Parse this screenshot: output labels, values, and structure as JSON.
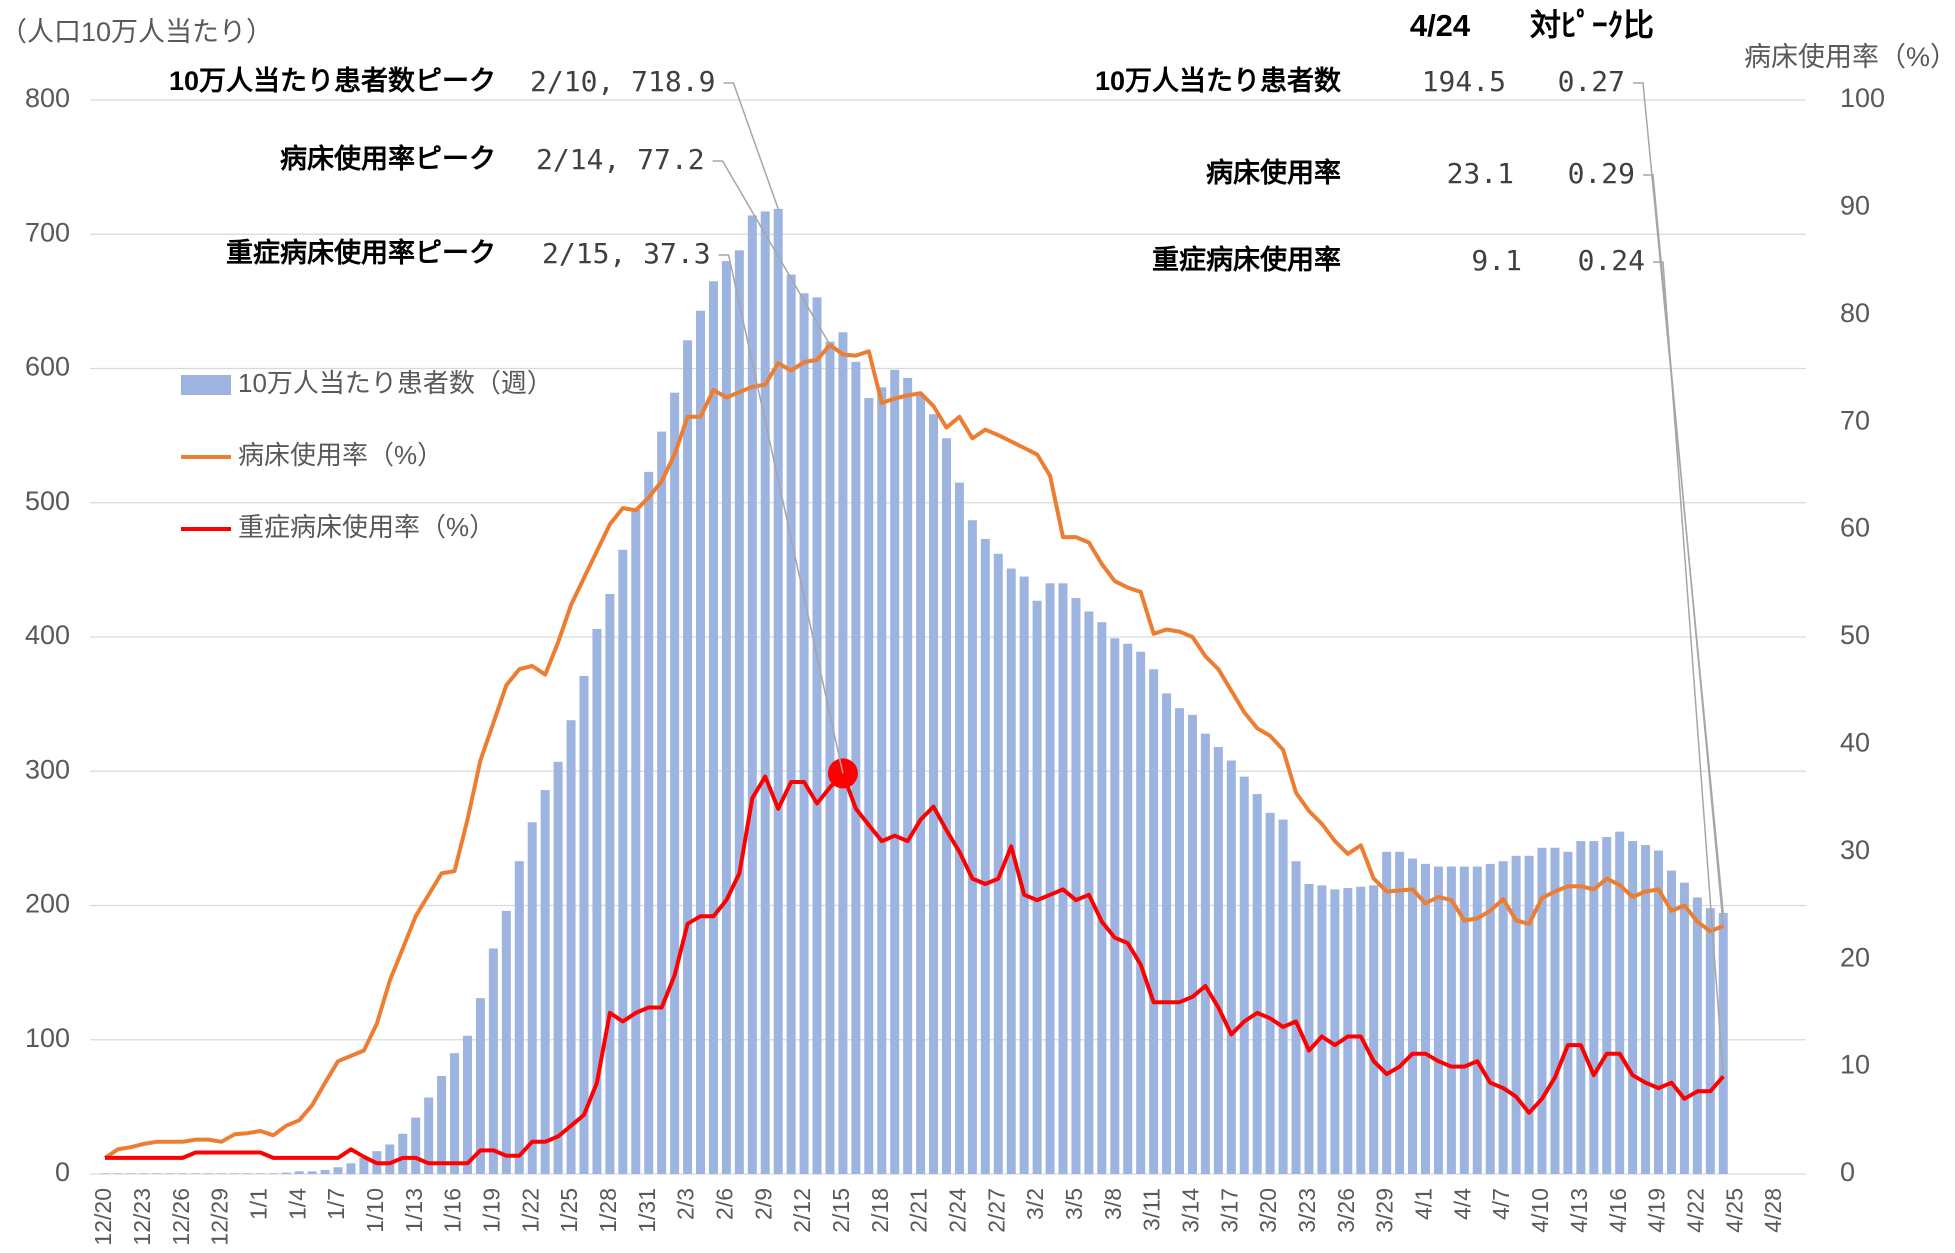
{
  "chart_data": {
    "type": "bar",
    "y_axis_label": "（人口10万人当たり）",
    "y2_axis_label": "病床使用率（%）",
    "categories": [
      "12/20",
      null,
      null,
      "12/23",
      null,
      null,
      "12/26",
      null,
      null,
      "12/29",
      null,
      null,
      "1/1",
      null,
      null,
      "1/4",
      null,
      null,
      "1/7",
      null,
      null,
      "1/10",
      null,
      null,
      "1/13",
      null,
      null,
      "1/16",
      null,
      null,
      "1/19",
      null,
      null,
      "1/22",
      null,
      null,
      "1/25",
      null,
      null,
      "1/28",
      null,
      null,
      "1/31",
      null,
      null,
      "2/3",
      null,
      null,
      "2/6",
      null,
      null,
      "2/9",
      null,
      null,
      "2/12",
      null,
      null,
      "2/15",
      null,
      null,
      "2/18",
      null,
      null,
      "2/21",
      null,
      null,
      "2/24",
      null,
      null,
      "2/27",
      null,
      null,
      "3/2",
      null,
      null,
      "3/5",
      null,
      null,
      "3/8",
      null,
      null,
      "3/11",
      null,
      null,
      "3/14",
      null,
      null,
      "3/17",
      null,
      null,
      "3/20",
      null,
      null,
      "3/23",
      null,
      null,
      "3/26",
      null,
      null,
      "3/29",
      null,
      null,
      "4/1",
      null,
      null,
      "4/4",
      null,
      null,
      "4/7",
      null,
      null,
      "4/10",
      null,
      null,
      "4/13",
      null,
      null,
      "4/16",
      null,
      null,
      "4/19",
      null,
      null,
      "4/22",
      null,
      null,
      "4/25",
      null,
      null,
      "4/28"
    ],
    "series": [
      {
        "name": "10万人当たり患者数（週）",
        "type": "bar",
        "axis": "y",
        "color": "#9db3e0",
        "values": [
          0.5,
          0.5,
          0.5,
          0.5,
          0.5,
          0.5,
          0.5,
          0.5,
          0.5,
          0.5,
          0.5,
          0.5,
          0.5,
          0.5,
          1,
          2,
          2,
          3,
          5,
          8,
          12,
          17,
          22,
          30,
          42,
          57,
          73,
          90,
          103,
          131,
          168,
          196,
          233,
          262,
          286,
          307,
          338,
          371,
          406,
          432,
          465,
          495,
          523,
          553,
          582,
          621,
          643,
          665,
          680,
          688,
          714,
          717,
          718.9,
          670,
          656,
          653,
          620,
          627,
          605,
          578,
          586,
          599,
          593,
          580,
          566,
          548,
          515,
          487,
          473,
          462,
          451,
          445,
          427,
          440,
          440,
          429,
          419,
          411,
          399,
          395,
          389,
          376,
          358,
          347,
          342,
          328,
          318,
          308,
          296,
          283,
          269,
          264,
          233,
          216,
          215,
          212,
          213,
          214,
          215,
          240,
          240,
          235,
          231,
          229,
          229,
          229,
          229,
          231,
          233,
          237,
          237,
          243,
          243,
          240,
          248,
          248,
          251,
          255,
          248,
          245,
          241,
          226,
          217,
          206,
          198,
          194.5,
          null,
          null,
          null,
          null
        ]
      },
      {
        "name": "病床使用率（%）",
        "type": "line",
        "axis": "y2",
        "color": "#ed7d31",
        "values": [
          1.5,
          2.3,
          2.5,
          2.8,
          3,
          3,
          3,
          3.2,
          3.2,
          3,
          3.7,
          3.8,
          4,
          3.6,
          4.5,
          5,
          6.4,
          8.5,
          10.5,
          11,
          11.5,
          14,
          18,
          21,
          24,
          26,
          28,
          28.2,
          33,
          38.5,
          42,
          45.5,
          47,
          47.3,
          46.5,
          49.5,
          53,
          55.5,
          58,
          60.5,
          62,
          61.8,
          63,
          64.5,
          67,
          70.5,
          70.5,
          73,
          72.3,
          72.8,
          73.3,
          73.5,
          75.5,
          74.8,
          75.6,
          75.8,
          77.2,
          76.3,
          76.2,
          76.6,
          71.8,
          72.2,
          72.5,
          72.7,
          71.5,
          69.5,
          70.5,
          68.5,
          69.3,
          68.8,
          68.2,
          67.6,
          67,
          65,
          59.3,
          59.3,
          58.8,
          56.8,
          55.2,
          54.6,
          54.2,
          50.3,
          50.7,
          50.5,
          50,
          48.2,
          47,
          45,
          43,
          41.5,
          40.8,
          39.5,
          35.5,
          33.8,
          32.6,
          31,
          29.8,
          30.6,
          27.5,
          26.3,
          26.4,
          26.5,
          25.2,
          25.8,
          25.5,
          23.6,
          23.8,
          24.5,
          25.6,
          23.6,
          23.3,
          25.7,
          26.3,
          26.8,
          26.8,
          26.5,
          27.5,
          26.9,
          25.8,
          26.3,
          26.5,
          24.5,
          25,
          23.5,
          22.6,
          23.1,
          null,
          null,
          null,
          null
        ]
      },
      {
        "name": "重症病床使用率（%）",
        "type": "line",
        "axis": "y2",
        "color": "#ff0000",
        "values": [
          1.5,
          1.5,
          1.5,
          1.5,
          1.5,
          1.5,
          1.5,
          2,
          2,
          2,
          2,
          2,
          2,
          1.5,
          1.5,
          1.5,
          1.5,
          1.5,
          1.5,
          2.3,
          1.6,
          1,
          1,
          1.5,
          1.5,
          1,
          1,
          1,
          1,
          2.2,
          2.2,
          1.7,
          1.7,
          3,
          3,
          3.5,
          4.5,
          5.5,
          8.5,
          15,
          14.2,
          15,
          15.5,
          15.5,
          18.5,
          23.3,
          24,
          24,
          25.5,
          28,
          35,
          37,
          34,
          36.5,
          36.5,
          34.5,
          36,
          37.3,
          34,
          32.5,
          31,
          31.5,
          31,
          33,
          34.2,
          32,
          30,
          27.5,
          27,
          27.5,
          30.5,
          26,
          25.5,
          26,
          26.5,
          25.5,
          26,
          23.5,
          22,
          21.5,
          19.5,
          16,
          16,
          16,
          16.5,
          17.5,
          15.5,
          13,
          14.2,
          15,
          14.5,
          13.7,
          14.2,
          11.5,
          12.8,
          12,
          12.8,
          12.8,
          10.5,
          9.3,
          10,
          11.2,
          11.2,
          10.5,
          10,
          10,
          10.5,
          8.5,
          8,
          7.2,
          5.7,
          7,
          9,
          12,
          12,
          9.2,
          11.2,
          11.2,
          9.2,
          8.5,
          8,
          8.5,
          7,
          7.7,
          7.7,
          9.1,
          null,
          null,
          null,
          null
        ]
      }
    ],
    "ylim": [
      0,
      800
    ],
    "yticks": [
      0,
      100,
      200,
      300,
      400,
      500,
      600,
      700,
      800
    ],
    "y2lim": [
      0,
      100
    ],
    "y2ticks": [
      0,
      10,
      20,
      30,
      40,
      50,
      60,
      70,
      80,
      90,
      100
    ],
    "grid": true,
    "legend": "upper left",
    "peak_annotations": [
      {
        "label": "10万人当たり患者数ピーク",
        "text": "2/10, 718.9"
      },
      {
        "label": "病床使用率ピーク",
        "text": "2/14, 77.2"
      },
      {
        "label": "重症病床使用率ピーク",
        "text": "2/15, 37.3"
      }
    ],
    "latest_annotations": {
      "date": "4/24",
      "ratio_header": "対ﾋﾟｰｸ比",
      "rows": [
        {
          "label": "10万人当たり患者数",
          "value": "194.5",
          "ratio": "0.27"
        },
        {
          "label": "病床使用率",
          "value": "23.1",
          "ratio": "0.29"
        },
        {
          "label": "重症病床使用率",
          "value": "9.1",
          "ratio": "0.24"
        }
      ]
    }
  }
}
